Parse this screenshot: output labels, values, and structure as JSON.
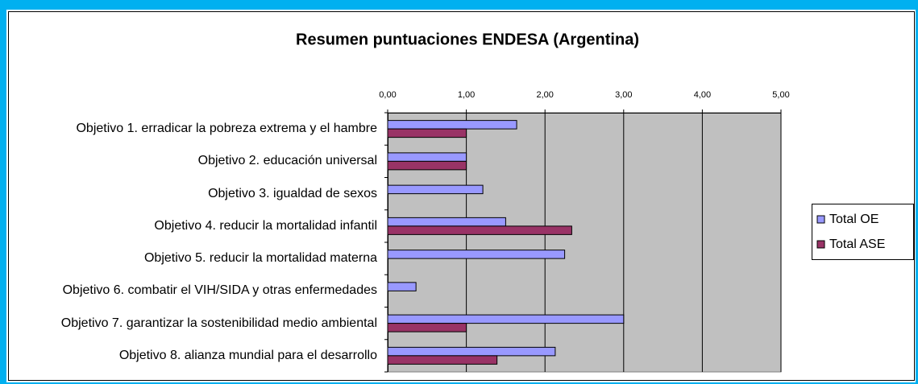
{
  "chart_data": {
    "type": "bar",
    "orientation": "horizontal",
    "title": "Resumen puntuaciones ENDESA (Argentina)",
    "categories": [
      "Objetivo 1. erradicar la pobreza extrema y el hambre",
      "Objetivo 2. educación universal",
      "Objetivo 3. igualdad de sexos",
      "Objetivo 4. reducir la mortalidad infantil",
      "Objetivo 5. reducir la mortalidad materna",
      "Objetivo 6. combatir el VIH/SIDA y otras enfermedades",
      "Objetivo 7. garantizar la sostenibilidad medio ambiental",
      "Objetivo 8. alianza mundial para el desarrollo"
    ],
    "series": [
      {
        "name": "Total OE",
        "color": "#9999ff",
        "values": [
          1.64,
          1.0,
          1.21,
          1.5,
          2.25,
          0.36,
          3.0,
          2.13
        ]
      },
      {
        "name": "Total ASE",
        "color": "#993366",
        "values": [
          1.0,
          1.0,
          null,
          2.34,
          null,
          null,
          1.0,
          1.39
        ]
      }
    ],
    "xlim": [
      0,
      5
    ],
    "xticks": [
      {
        "value": 0,
        "label": "0,00"
      },
      {
        "value": 1,
        "label": "1,00"
      },
      {
        "value": 2,
        "label": "2,00"
      },
      {
        "value": 3,
        "label": "3,00"
      },
      {
        "value": 4,
        "label": "4,00"
      },
      {
        "value": 5,
        "label": "5,00"
      }
    ],
    "grid": true,
    "legend": "right"
  }
}
